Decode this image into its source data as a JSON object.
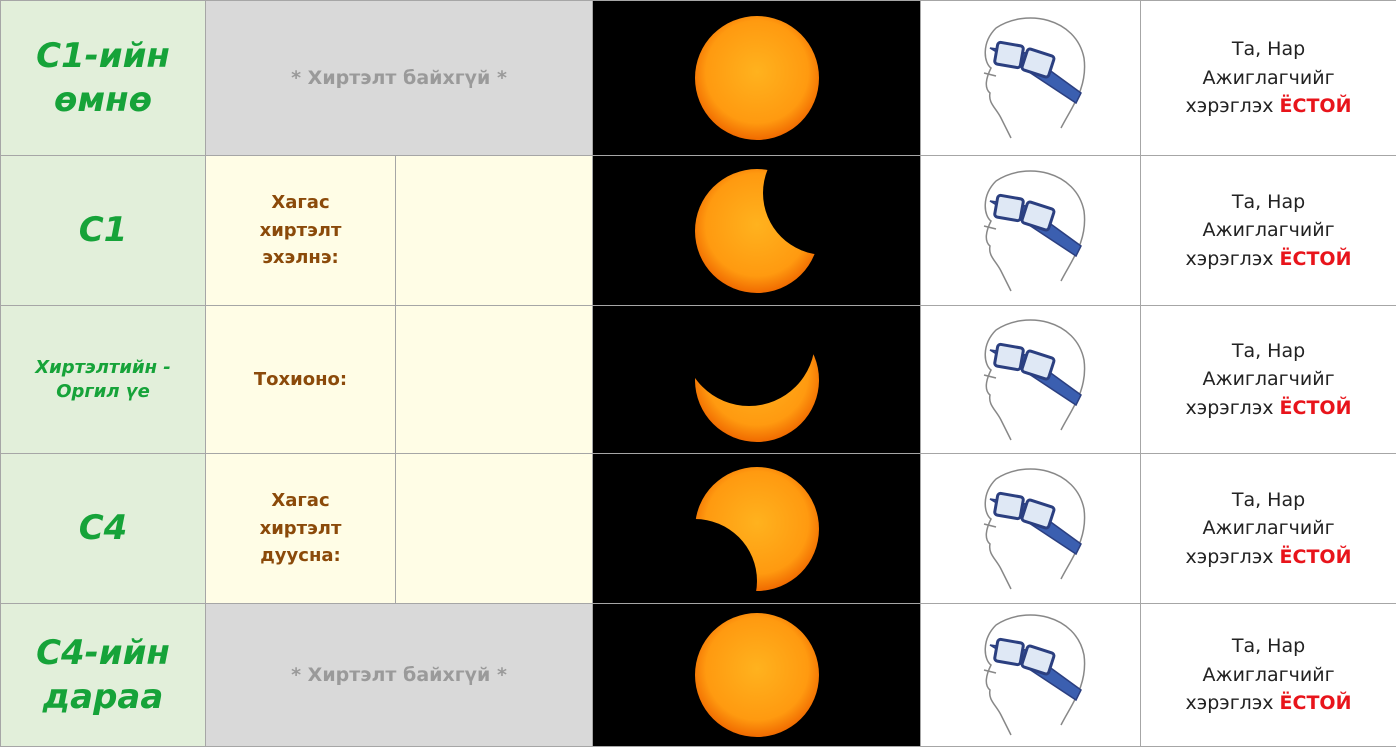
{
  "rows": [
    {
      "stage": "С1-ийн өмнө",
      "note": "* Хиртэлт байхгүй *",
      "advice": {
        "lines": [
          "Та, Нар",
          "Ажиглагчийг",
          "хэрэглэх"
        ],
        "emphasis": "ЁСТОЙ"
      }
    },
    {
      "stage": "С1",
      "event": "Хагас хиртэлт эхэлнэ:",
      "advice": {
        "lines": [
          "Та, Нар",
          "Ажиглагчийг",
          "хэрэглэх"
        ],
        "emphasis": "ЁСТОЙ"
      }
    },
    {
      "stage": "Хиртэлтийн - Оргил үе",
      "event": "Тохионо:",
      "advice": {
        "lines": [
          "Та, Нар",
          "Ажиглагчийг",
          "хэрэглэх"
        ],
        "emphasis": "ЁСТОЙ"
      }
    },
    {
      "stage": "С4",
      "event": "Хагас хиртэлт дуусна:",
      "advice": {
        "lines": [
          "Та, Нар",
          "Ажиглагчийг",
          "хэрэглэх"
        ],
        "emphasis": "ЁСТОЙ"
      }
    },
    {
      "stage": "С4-ийн дараа",
      "note": "* Хиртэлт байхгүй *",
      "advice": {
        "lines": [
          "Та, Нар",
          "Ажиглагчийг",
          "хэрэглэх"
        ],
        "emphasis": "ЁСТОЙ"
      }
    }
  ]
}
